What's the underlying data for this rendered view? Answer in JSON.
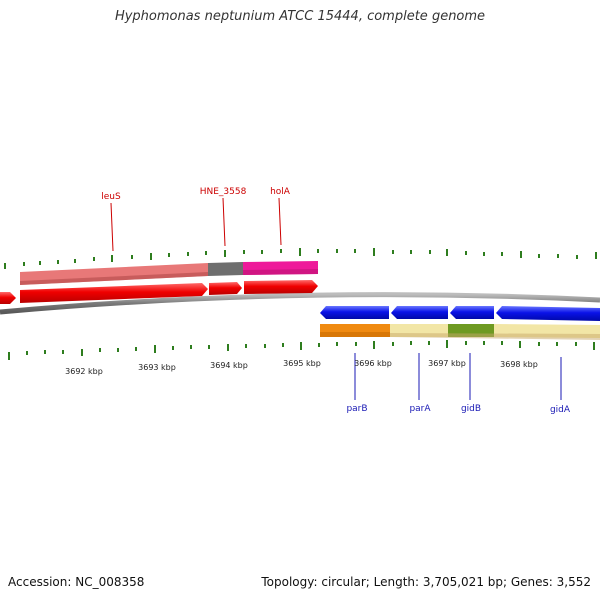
{
  "title": "Hyphomonas neptunium ATCC 15444, complete genome",
  "footer": {
    "accession": "Accession: NC_008358",
    "stats": "Topology: circular; Length: 3,705,021 bp; Genes: 3,552"
  },
  "colors": {
    "forward_gene": "#f00000",
    "reverse_gene": "#0a12e8",
    "backbone": "#7a7a7a",
    "tick": "#2e7d1e",
    "forward_label": "#cc0000",
    "reverse_label": "#1a1ab5"
  },
  "scale": {
    "unit": "kbp",
    "labels": [
      "3692 kbp",
      "3693 kbp",
      "3694 kbp",
      "3695 kbp",
      "3696 kbp",
      "3697 kbp",
      "3698 kbp"
    ]
  },
  "forward_genes": [
    {
      "name": "leuS",
      "label_color": "#cc0000"
    },
    {
      "name": "HNE_3558",
      "label_color": "#cc0000"
    },
    {
      "name": "holA",
      "label_color": "#cc0000"
    }
  ],
  "reverse_genes": [
    {
      "name": "parB",
      "label_color": "#1a1ab5"
    },
    {
      "name": "parA",
      "label_color": "#1a1ab5"
    },
    {
      "name": "gidB",
      "label_color": "#1a1ab5"
    },
    {
      "name": "gidA",
      "label_color": "#1a1ab5"
    }
  ],
  "feature_tracks": {
    "forward_colors": [
      "#e87878",
      "#6e6e6e",
      "#ee1a9a"
    ],
    "reverse_colors": [
      "#f08a10",
      "#f2e6a6",
      "#6e9a22",
      "#f2e6a6"
    ]
  }
}
